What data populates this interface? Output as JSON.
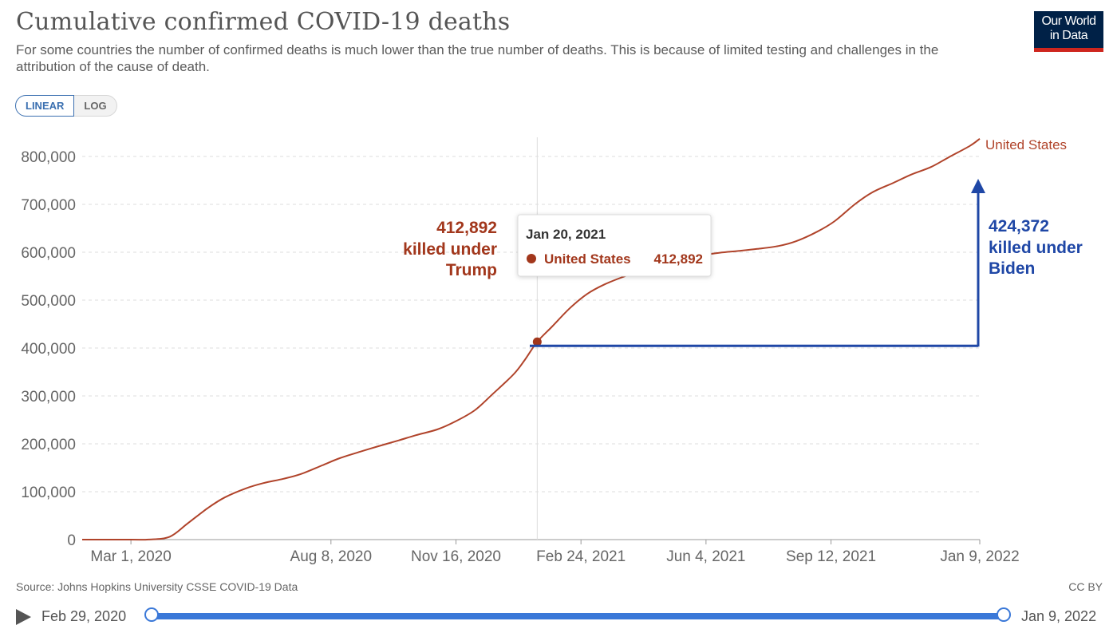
{
  "header": {
    "title": "Cumulative confirmed COVID-19 deaths",
    "subtitle": "For some countries the number of confirmed deaths is much lower than the true number of deaths. This is because of limited testing and challenges in the attribution of the cause of death.",
    "logo_line1": "Our World",
    "logo_line2": "in Data"
  },
  "scale_toggle": {
    "linear_label": "LINEAR",
    "log_label": "LOG",
    "selected": "LINEAR"
  },
  "chart_data": {
    "type": "line",
    "title": "Cumulative confirmed COVID-19 deaths",
    "xlabel": "",
    "ylabel": "",
    "x_range": [
      "2020-01-22",
      "2022-01-09"
    ],
    "ylim": [
      0,
      800000
    ],
    "yticks": [
      0,
      100000,
      200000,
      300000,
      400000,
      500000,
      600000,
      700000,
      800000
    ],
    "ytick_labels": [
      "0",
      "100,000",
      "200,000",
      "300,000",
      "400,000",
      "500,000",
      "600,000",
      "700,000",
      "800,000"
    ],
    "xticks": [
      "2020-03-01",
      "2020-08-08",
      "2020-11-16",
      "2021-02-24",
      "2021-06-04",
      "2021-09-12",
      "2022-01-09"
    ],
    "xtick_labels": [
      "Mar 1, 2020",
      "Aug 8, 2020",
      "Nov 16, 2020",
      "Feb 24, 2021",
      "Jun 4, 2021",
      "Sep 12, 2021",
      "Jan 9, 2022"
    ],
    "grid": "horizontal dashed",
    "legend": "end-of-line label",
    "series": [
      {
        "name": "United States",
        "color": "#b0432a",
        "x": [
          "2020-01-22",
          "2020-03-01",
          "2020-03-15",
          "2020-04-01",
          "2020-04-15",
          "2020-05-01",
          "2020-05-15",
          "2020-06-01",
          "2020-06-15",
          "2020-07-01",
          "2020-07-15",
          "2020-08-01",
          "2020-08-15",
          "2020-09-01",
          "2020-09-15",
          "2020-10-01",
          "2020-10-15",
          "2020-11-01",
          "2020-11-15",
          "2020-12-01",
          "2020-12-15",
          "2021-01-01",
          "2021-01-10",
          "2021-01-20",
          "2021-02-01",
          "2021-02-15",
          "2021-03-01",
          "2021-03-15",
          "2021-04-01",
          "2021-04-15",
          "2021-05-01",
          "2021-05-15",
          "2021-06-01",
          "2021-06-15",
          "2021-07-01",
          "2021-07-15",
          "2021-08-01",
          "2021-08-15",
          "2021-09-01",
          "2021-09-15",
          "2021-10-01",
          "2021-10-15",
          "2021-11-01",
          "2021-11-15",
          "2021-12-01",
          "2021-12-15",
          "2022-01-01",
          "2022-01-09"
        ],
        "y": [
          0,
          0,
          100,
          6000,
          33000,
          65000,
          88000,
          107000,
          118000,
          127000,
          137000,
          155000,
          170000,
          184000,
          195000,
          207000,
          218000,
          230000,
          246000,
          270000,
          303000,
          345000,
          375000,
          412892,
          445000,
          483000,
          513000,
          533000,
          551000,
          565000,
          577000,
          587000,
          594000,
          599000,
          603000,
          607000,
          613000,
          623000,
          643000,
          665000,
          700000,
          725000,
          745000,
          762000,
          778000,
          798000,
          822000,
          837000
        ]
      }
    ],
    "annotations": [
      {
        "date": "2021-01-20",
        "value": 412892,
        "value_label": "412,892",
        "text_line1": "killed under",
        "text_line2": "Trump",
        "color": "#a2371c"
      },
      {
        "value_label": "424,372",
        "text_line1": "killed under",
        "text_line2": "Biden",
        "color": "#1f47a6"
      }
    ],
    "tooltip": {
      "date_label": "Jan 20, 2021",
      "series": "United States",
      "value_label": "412,892"
    }
  },
  "footer": {
    "source": "Source: Johns Hopkins University CSSE COVID-19 Data",
    "license": "CC BY"
  },
  "timeline": {
    "start_label": "Feb 29, 2020",
    "end_label": "Jan 9, 2022"
  }
}
